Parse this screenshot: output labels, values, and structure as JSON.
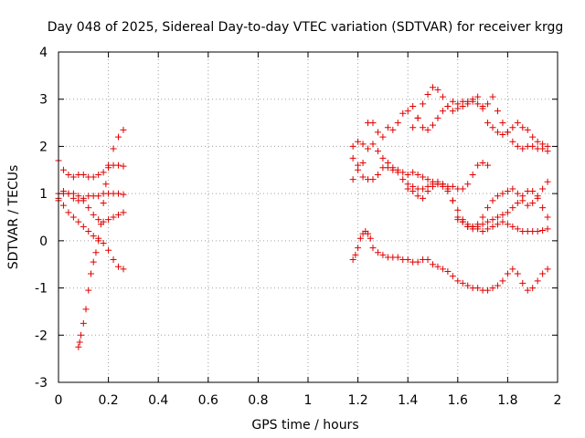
{
  "chart_data": {
    "type": "scatter",
    "title": "Day 048 of 2025, Sidereal Day-to-day VTEC variation (SDTVAR) for receiver krgg",
    "xlabel": "GPS time / hours",
    "ylabel": "SDTVAR / TECUs",
    "xlim": [
      0,
      2
    ],
    "ylim": [
      -3,
      4
    ],
    "x_ticks": [
      0,
      0.2,
      0.4,
      0.6,
      0.8,
      1,
      1.2,
      1.4,
      1.6,
      1.8,
      2
    ],
    "x_tick_labels": [
      "0",
      "0.2",
      "0.4",
      "0.6",
      "0.8",
      "1",
      "1.2",
      "1.4",
      "1.6",
      "1.8",
      "2"
    ],
    "y_ticks": [
      -3,
      -2,
      -1,
      0,
      1,
      2,
      3,
      4
    ],
    "y_tick_labels": [
      "-3",
      "-2",
      "-1",
      "0",
      "1",
      "2",
      "3",
      "4"
    ],
    "grid": true,
    "marker": "+",
    "marker_color": "#e00000",
    "series": [
      {
        "name": "s1",
        "x": [
          0.0,
          0.02,
          0.04,
          0.06,
          0.08,
          0.1,
          0.12,
          0.14,
          0.16,
          0.18,
          0.2,
          0.22,
          0.24,
          0.26
        ],
        "y": [
          1.7,
          1.5,
          1.4,
          1.35,
          1.4,
          1.4,
          1.35,
          1.35,
          1.4,
          1.45,
          1.55,
          1.6,
          1.6,
          1.58
        ]
      },
      {
        "name": "s2",
        "x": [
          0.0,
          0.02,
          0.04,
          0.06,
          0.08,
          0.1,
          0.12,
          0.14,
          0.16,
          0.18,
          0.2,
          0.22,
          0.24,
          0.26
        ],
        "y": [
          1.0,
          1.05,
          1.0,
          0.9,
          0.85,
          0.9,
          0.95,
          0.95,
          0.95,
          1.0,
          1.0,
          1.0,
          1.0,
          0.98
        ]
      },
      {
        "name": "s3",
        "x": [
          0.0,
          0.02,
          0.04,
          0.06,
          0.08,
          0.1,
          0.12,
          0.14,
          0.16,
          0.18,
          0.2,
          0.22,
          0.24,
          0.26
        ],
        "y": [
          0.9,
          1.0,
          1.0,
          1.0,
          0.95,
          0.85,
          0.7,
          0.55,
          0.45,
          0.4,
          0.45,
          0.5,
          0.55,
          0.6
        ]
      },
      {
        "name": "s4",
        "x": [
          0.0,
          0.02,
          0.04,
          0.06,
          0.08,
          0.1,
          0.12,
          0.14,
          0.16,
          0.18,
          0.2,
          0.22,
          0.24,
          0.26
        ],
        "y": [
          0.85,
          0.75,
          0.6,
          0.5,
          0.4,
          0.3,
          0.2,
          0.1,
          0.05,
          -0.05,
          -0.2,
          -0.4,
          -0.55,
          -0.6
        ]
      },
      {
        "name": "s5",
        "x": [
          0.08,
          0.085,
          0.09,
          0.1,
          0.11,
          0.12,
          0.13,
          0.14,
          0.15,
          0.16,
          0.17,
          0.18,
          0.19,
          0.2,
          0.22,
          0.24,
          0.26
        ],
        "y": [
          -2.25,
          -2.15,
          -2.0,
          -1.75,
          -1.45,
          -1.05,
          -0.7,
          -0.45,
          -0.25,
          0.0,
          0.35,
          0.8,
          1.2,
          1.6,
          1.95,
          2.2,
          2.35
        ]
      },
      {
        "name": "s6",
        "x": [
          1.18,
          1.2,
          1.22,
          1.24,
          1.26,
          1.28,
          1.3,
          1.32,
          1.34,
          1.36,
          1.38,
          1.4,
          1.42,
          1.44,
          1.46,
          1.48,
          1.5,
          1.52,
          1.54,
          1.56,
          1.58,
          1.6,
          1.62,
          1.64,
          1.66,
          1.68,
          1.7,
          1.72,
          1.74,
          1.76,
          1.78,
          1.8,
          1.82,
          1.84,
          1.86,
          1.88,
          1.9,
          1.92,
          1.94,
          1.96
        ],
        "y": [
          2.0,
          2.1,
          2.05,
          2.5,
          2.5,
          2.3,
          2.2,
          2.4,
          2.35,
          2.5,
          2.7,
          2.75,
          2.85,
          2.6,
          2.4,
          2.35,
          2.45,
          2.6,
          2.75,
          2.85,
          2.95,
          2.9,
          2.95,
          2.95,
          3.0,
          3.05,
          2.8,
          2.5,
          2.4,
          2.3,
          2.25,
          2.3,
          2.4,
          2.5,
          2.4,
          2.35,
          2.2,
          2.1,
          2.05,
          2.0
        ]
      },
      {
        "name": "s7",
        "x": [
          1.42,
          1.44,
          1.46,
          1.48,
          1.5,
          1.52,
          1.54,
          1.56,
          1.58,
          1.6,
          1.62,
          1.64,
          1.66,
          1.68,
          1.7,
          1.72,
          1.74,
          1.76,
          1.78,
          1.8,
          1.82,
          1.84,
          1.86,
          1.88,
          1.9,
          1.92,
          1.94,
          1.96
        ],
        "y": [
          2.4,
          2.6,
          2.9,
          3.1,
          3.25,
          3.2,
          3.05,
          2.85,
          2.75,
          2.8,
          2.85,
          2.9,
          2.95,
          2.9,
          2.85,
          2.9,
          3.05,
          2.75,
          2.5,
          2.3,
          2.1,
          2.0,
          1.95,
          2.0,
          2.0,
          1.95,
          1.95,
          1.9
        ]
      },
      {
        "name": "s8",
        "x": [
          1.18,
          1.2,
          1.22,
          1.24,
          1.26,
          1.28,
          1.3,
          1.32,
          1.34,
          1.36,
          1.38,
          1.4,
          1.42,
          1.44,
          1.46,
          1.48,
          1.5,
          1.52,
          1.54,
          1.56,
          1.58,
          1.6,
          1.62,
          1.64,
          1.66,
          1.68,
          1.7,
          1.72
        ],
        "y": [
          1.75,
          1.6,
          1.65,
          1.95,
          2.05,
          1.9,
          1.75,
          1.65,
          1.55,
          1.5,
          1.45,
          1.4,
          1.45,
          1.4,
          1.35,
          1.3,
          1.25,
          1.2,
          1.2,
          1.15,
          1.15,
          1.1,
          1.1,
          1.2,
          1.4,
          1.6,
          1.65,
          1.6
        ]
      },
      {
        "name": "s9",
        "x": [
          1.18,
          1.2,
          1.22,
          1.24,
          1.26,
          1.28,
          1.3,
          1.32,
          1.34,
          1.36,
          1.38,
          1.4,
          1.42,
          1.44,
          1.46,
          1.48,
          1.5,
          1.52,
          1.54,
          1.56,
          1.58,
          1.6,
          1.62,
          1.64,
          1.66,
          1.68,
          1.7,
          1.72,
          1.74,
          1.76,
          1.78,
          1.8,
          1.82,
          1.84,
          1.86,
          1.88,
          1.9,
          1.92,
          1.94,
          1.96
        ],
        "y": [
          1.3,
          1.5,
          1.35,
          1.3,
          1.3,
          1.4,
          1.55,
          1.55,
          1.5,
          1.45,
          1.3,
          1.1,
          1.15,
          1.1,
          1.1,
          1.15,
          1.2,
          1.25,
          1.2,
          1.1,
          0.85,
          0.65,
          0.45,
          0.3,
          0.3,
          0.35,
          0.5,
          0.7,
          0.85,
          0.95,
          1.0,
          1.05,
          1.1,
          1.0,
          0.85,
          0.75,
          0.8,
          0.95,
          1.1,
          1.25
        ]
      },
      {
        "name": "s10",
        "x": [
          1.4,
          1.42,
          1.44,
          1.46,
          1.48,
          1.5,
          1.52,
          1.54,
          1.56,
          1.58,
          1.6,
          1.62,
          1.64,
          1.66,
          1.68,
          1.7,
          1.72,
          1.74,
          1.76,
          1.78,
          1.8,
          1.82,
          1.84,
          1.86,
          1.88,
          1.9,
          1.92,
          1.94,
          1.96
        ],
        "y": [
          1.2,
          1.05,
          0.95,
          0.9,
          1.05,
          1.15,
          1.2,
          1.15,
          1.05,
          0.85,
          0.5,
          0.4,
          0.3,
          0.25,
          0.3,
          0.35,
          0.4,
          0.45,
          0.5,
          0.55,
          0.6,
          0.7,
          0.8,
          0.95,
          1.05,
          1.05,
          0.9,
          0.7,
          0.5
        ]
      },
      {
        "name": "s11",
        "x": [
          1.6,
          1.62,
          1.64,
          1.66,
          1.68,
          1.7,
          1.72,
          1.74,
          1.76,
          1.78,
          1.8,
          1.82,
          1.84,
          1.86,
          1.88,
          1.9,
          1.92,
          1.94,
          1.96
        ],
        "y": [
          0.45,
          0.4,
          0.35,
          0.3,
          0.25,
          0.2,
          0.25,
          0.3,
          0.35,
          0.4,
          0.35,
          0.3,
          0.25,
          0.2,
          0.2,
          0.2,
          0.2,
          0.22,
          0.25
        ]
      },
      {
        "name": "s12",
        "x": [
          1.18,
          1.19,
          1.2,
          1.21,
          1.22,
          1.23,
          1.24,
          1.25,
          1.26,
          1.28,
          1.3,
          1.32,
          1.34,
          1.36,
          1.38,
          1.4,
          1.42,
          1.44,
          1.46,
          1.48,
          1.5,
          1.52,
          1.54,
          1.56,
          1.58,
          1.6,
          1.62,
          1.64,
          1.66,
          1.68,
          1.7,
          1.72,
          1.74,
          1.76,
          1.78,
          1.8,
          1.82,
          1.84,
          1.86,
          1.88,
          1.9,
          1.92,
          1.94,
          1.96
        ],
        "y": [
          -0.4,
          -0.3,
          -0.15,
          0.05,
          0.15,
          0.2,
          0.15,
          0.05,
          -0.15,
          -0.25,
          -0.3,
          -0.35,
          -0.35,
          -0.35,
          -0.4,
          -0.4,
          -0.45,
          -0.45,
          -0.4,
          -0.4,
          -0.5,
          -0.55,
          -0.6,
          -0.65,
          -0.75,
          -0.85,
          -0.9,
          -0.95,
          -1.0,
          -1.0,
          -1.05,
          -1.05,
          -1.0,
          -0.95,
          -0.85,
          -0.7,
          -0.6,
          -0.7,
          -0.9,
          -1.05,
          -1.0,
          -0.85,
          -0.7,
          -0.6
        ]
      }
    ]
  }
}
